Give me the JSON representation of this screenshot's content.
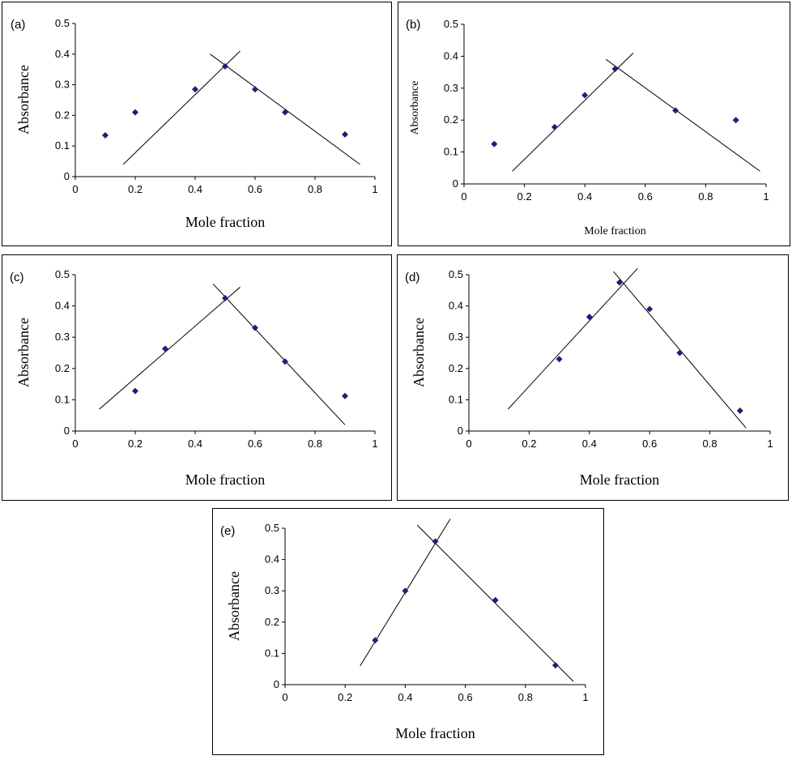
{
  "chart_data": [
    {
      "type": "scatter",
      "panel_label": "(a)",
      "xlabel": "Mole fraction",
      "ylabel": "Absorbance",
      "xlim": [
        0,
        1
      ],
      "ylim": [
        0,
        0.5
      ],
      "xticks": [
        "0",
        "0.2",
        "0.4",
        "0.6",
        "0.8",
        "1"
      ],
      "yticks": [
        "0",
        "0.1",
        "0.2",
        "0.3",
        "0.4",
        "0.5"
      ],
      "points": [
        {
          "x": 0.1,
          "y": 0.135
        },
        {
          "x": 0.2,
          "y": 0.21
        },
        {
          "x": 0.4,
          "y": 0.285
        },
        {
          "x": 0.5,
          "y": 0.36
        },
        {
          "x": 0.6,
          "y": 0.285
        },
        {
          "x": 0.7,
          "y": 0.21
        },
        {
          "x": 0.9,
          "y": 0.138
        }
      ],
      "fit_lines": [
        {
          "x1": 0.16,
          "y1": 0.04,
          "x2": 0.55,
          "y2": 0.41
        },
        {
          "x1": 0.45,
          "y1": 0.4,
          "x2": 0.95,
          "y2": 0.04
        }
      ]
    },
    {
      "type": "scatter",
      "panel_label": "(b)",
      "xlabel": "Mole fraction",
      "ylabel": "Absorbance",
      "xlim": [
        0,
        1
      ],
      "ylim": [
        0,
        0.5
      ],
      "xticks": [
        "0",
        "0.2",
        "0.4",
        "0.6",
        "0.8",
        "1"
      ],
      "yticks": [
        "0",
        "0.1",
        "0.2",
        "0.3",
        "0.4",
        "0.5"
      ],
      "points": [
        {
          "x": 0.1,
          "y": 0.125
        },
        {
          "x": 0.3,
          "y": 0.178
        },
        {
          "x": 0.4,
          "y": 0.278
        },
        {
          "x": 0.5,
          "y": 0.36
        },
        {
          "x": 0.7,
          "y": 0.23
        },
        {
          "x": 0.9,
          "y": 0.2
        }
      ],
      "fit_lines": [
        {
          "x1": 0.16,
          "y1": 0.04,
          "x2": 0.56,
          "y2": 0.41
        },
        {
          "x1": 0.47,
          "y1": 0.39,
          "x2": 0.98,
          "y2": 0.04
        }
      ]
    },
    {
      "type": "scatter",
      "panel_label": "(c)",
      "xlabel": "Mole fraction",
      "ylabel": "Absorbance",
      "xlim": [
        0,
        1
      ],
      "ylim": [
        0,
        0.5
      ],
      "xticks": [
        "0",
        "0.2",
        "0.4",
        "0.6",
        "0.8",
        "1"
      ],
      "yticks": [
        "0",
        "0.1",
        "0.2",
        "0.3",
        "0.4",
        "0.5"
      ],
      "points": [
        {
          "x": 0.2,
          "y": 0.128
        },
        {
          "x": 0.3,
          "y": 0.263
        },
        {
          "x": 0.5,
          "y": 0.425
        },
        {
          "x": 0.6,
          "y": 0.33
        },
        {
          "x": 0.7,
          "y": 0.222
        },
        {
          "x": 0.9,
          "y": 0.112
        }
      ],
      "fit_lines": [
        {
          "x1": 0.08,
          "y1": 0.07,
          "x2": 0.55,
          "y2": 0.46
        },
        {
          "x1": 0.46,
          "y1": 0.47,
          "x2": 0.9,
          "y2": 0.02
        }
      ]
    },
    {
      "type": "scatter",
      "panel_label": "(d)",
      "xlabel": "Mole fraction",
      "ylabel": "Absorbance",
      "xlim": [
        0,
        1
      ],
      "ylim": [
        0,
        0.5
      ],
      "xticks": [
        "0",
        "0.2",
        "0.4",
        "0.6",
        "0.8",
        "1"
      ],
      "yticks": [
        "0",
        "0.1",
        "0.2",
        "0.3",
        "0.4",
        "0.5"
      ],
      "points": [
        {
          "x": 0.3,
          "y": 0.23
        },
        {
          "x": 0.4,
          "y": 0.365
        },
        {
          "x": 0.5,
          "y": 0.475
        },
        {
          "x": 0.6,
          "y": 0.39
        },
        {
          "x": 0.7,
          "y": 0.25
        },
        {
          "x": 0.9,
          "y": 0.065
        }
      ],
      "fit_lines": [
        {
          "x1": 0.13,
          "y1": 0.07,
          "x2": 0.56,
          "y2": 0.52
        },
        {
          "x1": 0.48,
          "y1": 0.51,
          "x2": 0.92,
          "y2": 0.01
        }
      ]
    },
    {
      "type": "scatter",
      "panel_label": "(e)",
      "xlabel": "Mole fraction",
      "ylabel": "Absorbance",
      "xlim": [
        0,
        1
      ],
      "ylim": [
        0,
        0.5
      ],
      "xticks": [
        "0",
        "0.2",
        "0.4",
        "0.6",
        "0.8",
        "1"
      ],
      "yticks": [
        "0",
        "0.1",
        "0.2",
        "0.3",
        "0.4",
        "0.5"
      ],
      "points": [
        {
          "x": 0.3,
          "y": 0.142
        },
        {
          "x": 0.4,
          "y": 0.3
        },
        {
          "x": 0.5,
          "y": 0.458
        },
        {
          "x": 0.7,
          "y": 0.27
        },
        {
          "x": 0.9,
          "y": 0.062
        }
      ],
      "fit_lines": [
        {
          "x1": 0.25,
          "y1": 0.06,
          "x2": 0.55,
          "y2": 0.53
        },
        {
          "x1": 0.44,
          "y1": 0.51,
          "x2": 0.96,
          "y2": 0.01
        }
      ]
    }
  ],
  "colors": {
    "marker": "#1f1f7a",
    "axis": "#000000",
    "line": "#000000"
  }
}
